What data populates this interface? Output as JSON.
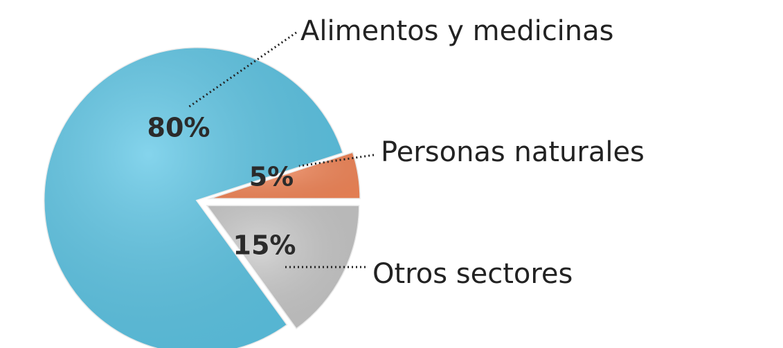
{
  "chart_data": {
    "type": "pie",
    "categories": [
      "Alimentos y medicinas",
      "Personas naturales",
      "Otros sectores"
    ],
    "values": [
      80,
      5,
      15
    ],
    "value_labels": [
      "80%",
      "5%",
      "15%"
    ],
    "colors": [
      "#5cc6e6",
      "#f5885a",
      "#c9c9c9"
    ]
  }
}
